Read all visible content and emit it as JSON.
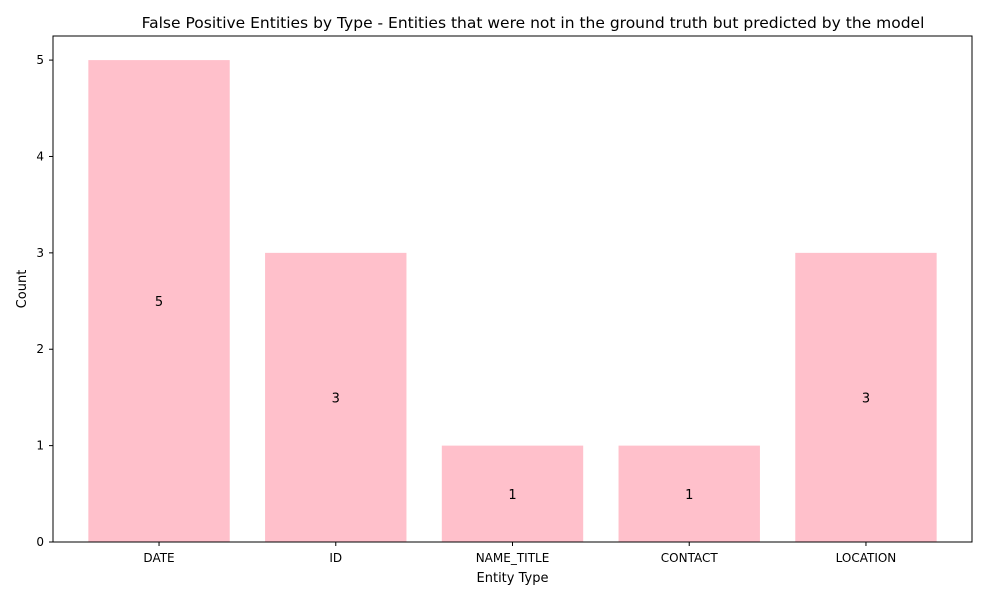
{
  "chart_data": {
    "type": "bar",
    "title": "False Positive Entities by Type - Entities that were not in the ground truth but predicted by the model",
    "xlabel": "Entity Type",
    "ylabel": "Count",
    "categories": [
      "DATE",
      "ID",
      "NAME_TITLE",
      "CONTACT",
      "LOCATION"
    ],
    "values": [
      5,
      3,
      1,
      1,
      3
    ],
    "data_labels": [
      "5",
      "3",
      "1",
      "1",
      "3"
    ],
    "yticks": [
      0,
      1,
      2,
      3,
      4,
      5
    ],
    "ytick_labels": [
      "0",
      "1",
      "2",
      "3",
      "4",
      "5"
    ],
    "ylim": [
      0,
      5.25
    ],
    "bar_color": "#ffc0cb",
    "grid": false,
    "legend": "none"
  }
}
